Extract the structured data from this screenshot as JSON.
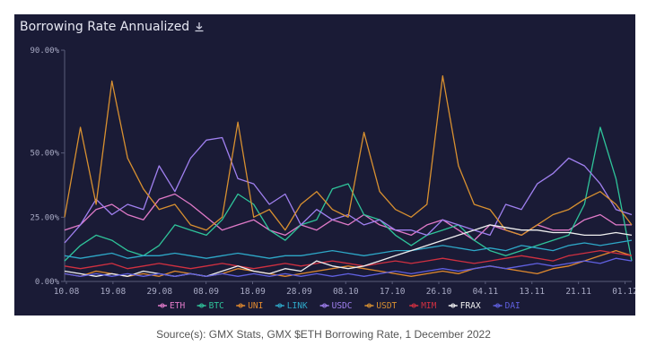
{
  "panel": {
    "title": "Borrowing Rate Annualized",
    "download_icon": "download-icon"
  },
  "caption": "Source(s): GMX Stats, GMX $ETH Borrowing Rate, 1 December 2022",
  "chart_data": {
    "type": "line",
    "title": "Borrowing Rate Annualized",
    "xlabel": "",
    "ylabel": "",
    "ylim": [
      0,
      90
    ],
    "yticks": [
      0,
      25,
      50,
      90
    ],
    "yticklabels": [
      "0.00%",
      "25.00%",
      "50.00%",
      "90.00%"
    ],
    "xticklabels": [
      "10.08",
      "19.08",
      "29.08",
      "08.09",
      "18.09",
      "28.09",
      "08.10",
      "17.10",
      "26.10",
      "04.11",
      "13.11",
      "21.11",
      "01.12"
    ],
    "grid": false,
    "legend_position": "bottom",
    "x": [
      "10.08",
      "13.08",
      "16.08",
      "19.08",
      "22.08",
      "26.08",
      "29.08",
      "01.09",
      "04.09",
      "08.09",
      "11.09",
      "14.09",
      "18.09",
      "21.09",
      "24.09",
      "28.09",
      "01.10",
      "04.10",
      "08.10",
      "11.10",
      "14.10",
      "17.10",
      "20.10",
      "23.10",
      "26.10",
      "29.10",
      "01.11",
      "04.11",
      "07.11",
      "10.11",
      "13.11",
      "15.11",
      "18.11",
      "21.11",
      "24.11",
      "27.11",
      "01.12"
    ],
    "series": [
      {
        "name": "ETH",
        "color": "#e07ac8",
        "values": [
          20,
          22,
          28,
          30,
          26,
          24,
          32,
          34,
          30,
          25,
          20,
          22,
          24,
          20,
          18,
          22,
          20,
          24,
          22,
          26,
          22,
          20,
          18,
          22,
          24,
          20,
          16,
          22,
          20,
          18,
          22,
          20,
          20,
          24,
          26,
          22,
          22
        ]
      },
      {
        "name": "BTC",
        "color": "#2fc49a",
        "values": [
          8,
          14,
          18,
          16,
          12,
          10,
          14,
          22,
          20,
          18,
          24,
          34,
          30,
          20,
          16,
          22,
          24,
          36,
          38,
          26,
          24,
          18,
          14,
          18,
          20,
          22,
          16,
          12,
          10,
          12,
          14,
          16,
          18,
          30,
          60,
          40,
          8
        ]
      },
      {
        "name": "UNI",
        "color": "#e0892e",
        "values": [
          3,
          2,
          4,
          3,
          2,
          3,
          2,
          4,
          3,
          2,
          3,
          5,
          4,
          3,
          2,
          3,
          4,
          5,
          6,
          5,
          4,
          3,
          2,
          3,
          4,
          3,
          5,
          6,
          5,
          4,
          3,
          5,
          6,
          8,
          10,
          12,
          10
        ]
      },
      {
        "name": "LINK",
        "color": "#2ea8c8",
        "values": [
          10,
          9,
          10,
          11,
          9,
          10,
          10,
          11,
          10,
          9,
          10,
          11,
          10,
          9,
          10,
          10,
          11,
          12,
          11,
          10,
          11,
          12,
          12,
          13,
          14,
          13,
          12,
          13,
          12,
          14,
          13,
          12,
          14,
          15,
          14,
          15,
          16
        ]
      },
      {
        "name": "USDC",
        "color": "#a080f0",
        "values": [
          15,
          22,
          32,
          26,
          30,
          28,
          45,
          35,
          48,
          55,
          56,
          40,
          38,
          30,
          34,
          22,
          28,
          24,
          26,
          22,
          24,
          20,
          20,
          18,
          24,
          22,
          20,
          18,
          30,
          28,
          38,
          42,
          48,
          45,
          38,
          28,
          26
        ]
      },
      {
        "name": "USDT",
        "color": "#d89030",
        "values": [
          25,
          60,
          30,
          78,
          48,
          36,
          28,
          30,
          22,
          20,
          25,
          62,
          25,
          28,
          20,
          30,
          35,
          28,
          25,
          58,
          35,
          28,
          25,
          30,
          80,
          45,
          30,
          28,
          20,
          18,
          22,
          26,
          28,
          32,
          35,
          30,
          22
        ]
      },
      {
        "name": "MIM",
        "color": "#d03040",
        "values": [
          6,
          5,
          6,
          7,
          5,
          6,
          7,
          6,
          5,
          6,
          7,
          6,
          5,
          6,
          7,
          6,
          7,
          8,
          7,
          6,
          7,
          8,
          7,
          8,
          9,
          8,
          7,
          8,
          9,
          10,
          9,
          8,
          10,
          11,
          12,
          11,
          10
        ]
      },
      {
        "name": "FRAX",
        "color": "#f0f0f0",
        "values": [
          4,
          3,
          2,
          3,
          2,
          4,
          3,
          2,
          3,
          2,
          4,
          6,
          4,
          3,
          5,
          4,
          8,
          6,
          5,
          6,
          8,
          10,
          12,
          14,
          16,
          18,
          20,
          22,
          21,
          20,
          20,
          19,
          19,
          18,
          18,
          19,
          18
        ]
      },
      {
        "name": "DAI",
        "color": "#6060e0",
        "values": [
          3,
          2,
          3,
          2,
          3,
          2,
          3,
          2,
          3,
          2,
          3,
          2,
          3,
          2,
          3,
          2,
          3,
          2,
          3,
          2,
          3,
          4,
          3,
          4,
          5,
          4,
          5,
          6,
          5,
          6,
          7,
          6,
          7,
          8,
          7,
          9,
          8
        ]
      }
    ]
  }
}
